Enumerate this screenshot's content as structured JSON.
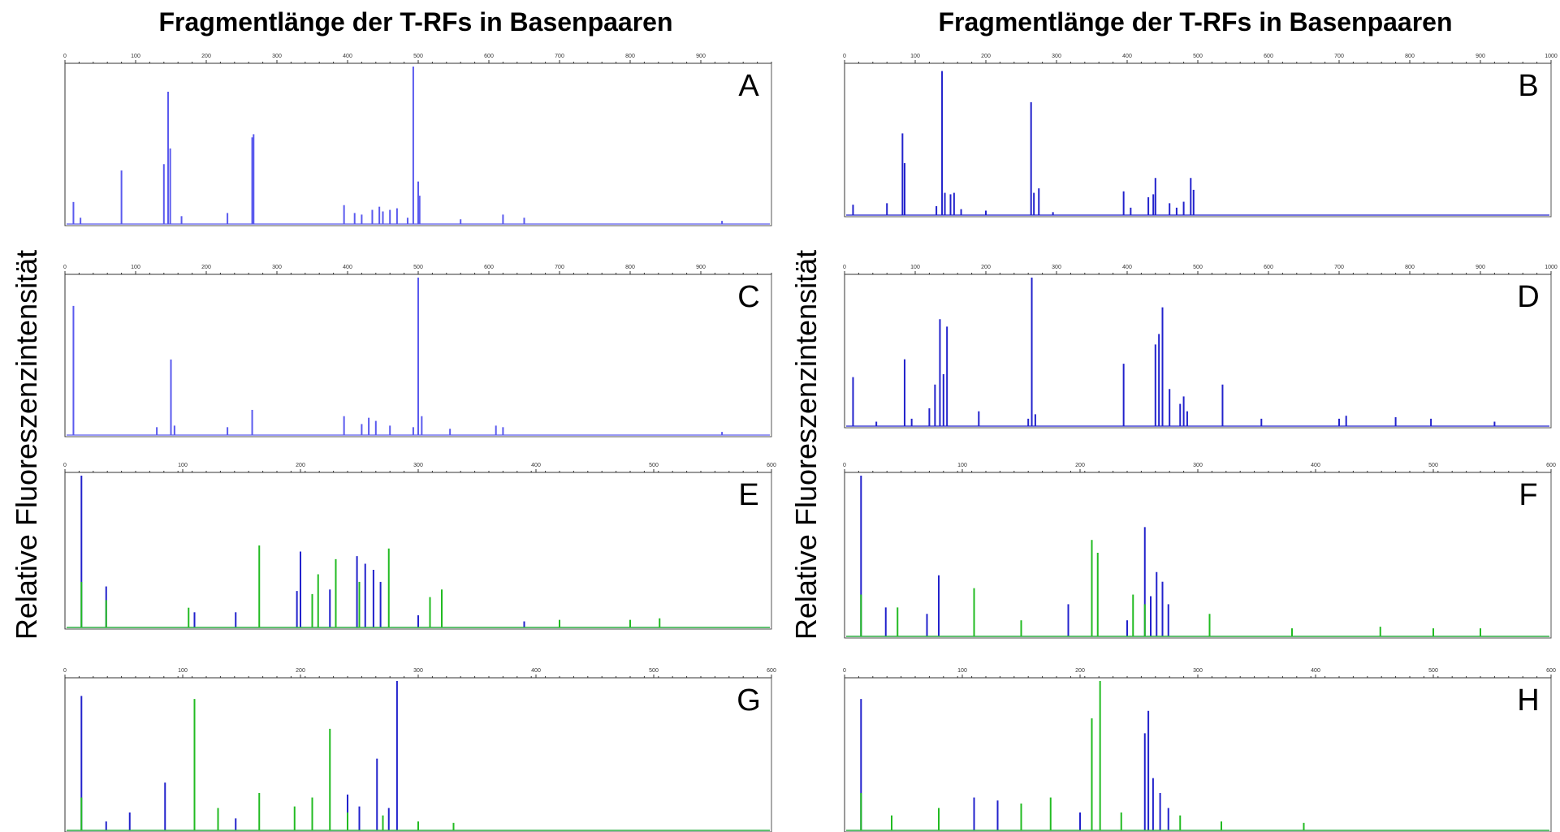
{
  "figure": {
    "title_left": "Fragmentlänge der T-RFs in Basenpaaren",
    "title_right": "Fragmentlänge der T-RFs in Basenpaaren",
    "ylabel_left": "Relative Fluoreszenzintensität",
    "ylabel_right": "Relative Fluoreszenzintensität"
  },
  "colors": {
    "blue": "#2222cc",
    "lightblue": "#7777ff",
    "green": "#22bb22",
    "frame": "#555555"
  },
  "chart_data": [
    {
      "panel": "A",
      "type": "line",
      "xlim": [
        0,
        1000
      ],
      "x_ticks": [
        "0",
        "100",
        "200",
        "300",
        "400",
        "500",
        "600",
        "700",
        "800",
        "900"
      ],
      "series": [
        {
          "color": "#5a5aee",
          "peaks": [
            [
              12,
              0.14
            ],
            [
              22,
              0.04
            ],
            [
              80,
              0.34
            ],
            [
              140,
              0.38
            ],
            [
              146,
              0.84
            ],
            [
              149,
              0.48
            ],
            [
              165,
              0.05
            ],
            [
              230,
              0.07
            ],
            [
              265,
              0.55
            ],
            [
              267,
              0.57
            ],
            [
              395,
              0.12
            ],
            [
              410,
              0.07
            ],
            [
              420,
              0.06
            ],
            [
              435,
              0.09
            ],
            [
              445,
              0.11
            ],
            [
              450,
              0.08
            ],
            [
              460,
              0.09
            ],
            [
              470,
              0.1
            ],
            [
              485,
              0.04
            ],
            [
              493,
              1.0
            ],
            [
              500,
              0.27
            ],
            [
              502,
              0.18
            ],
            [
              560,
              0.03
            ],
            [
              620,
              0.06
            ],
            [
              650,
              0.04
            ],
            [
              930,
              0.02
            ]
          ]
        }
      ]
    },
    {
      "panel": "B",
      "type": "line",
      "xlim": [
        0,
        1000
      ],
      "x_ticks": [
        "0",
        "100",
        "200",
        "300",
        "400",
        "500",
        "600",
        "700",
        "800",
        "900",
        "1000"
      ],
      "series": [
        {
          "color": "#2222cc",
          "peaks": [
            [
              12,
              0.07
            ],
            [
              60,
              0.08
            ],
            [
              82,
              0.55
            ],
            [
              85,
              0.35
            ],
            [
              130,
              0.06
            ],
            [
              138,
              0.97
            ],
            [
              142,
              0.15
            ],
            [
              150,
              0.14
            ],
            [
              155,
              0.15
            ],
            [
              165,
              0.04
            ],
            [
              200,
              0.03
            ],
            [
              264,
              0.76
            ],
            [
              268,
              0.15
            ],
            [
              275,
              0.18
            ],
            [
              295,
              0.02
            ],
            [
              395,
              0.16
            ],
            [
              405,
              0.05
            ],
            [
              430,
              0.12
            ],
            [
              437,
              0.14
            ],
            [
              440,
              0.25
            ],
            [
              460,
              0.08
            ],
            [
              470,
              0.05
            ],
            [
              480,
              0.09
            ],
            [
              490,
              0.25
            ],
            [
              494,
              0.17
            ]
          ]
        }
      ]
    },
    {
      "panel": "C",
      "type": "line",
      "xlim": [
        0,
        1000
      ],
      "x_ticks": [
        "0",
        "100",
        "200",
        "300",
        "400",
        "500",
        "600",
        "700",
        "800",
        "900"
      ],
      "series": [
        {
          "color": "#5a5aee",
          "peaks": [
            [
              12,
              0.82
            ],
            [
              130,
              0.05
            ],
            [
              150,
              0.48
            ],
            [
              155,
              0.06
            ],
            [
              230,
              0.05
            ],
            [
              265,
              0.16
            ],
            [
              395,
              0.12
            ],
            [
              420,
              0.07
            ],
            [
              430,
              0.11
            ],
            [
              440,
              0.09
            ],
            [
              460,
              0.06
            ],
            [
              493,
              0.05
            ],
            [
              500,
              1.0
            ],
            [
              505,
              0.12
            ],
            [
              545,
              0.04
            ],
            [
              610,
              0.06
            ],
            [
              620,
              0.05
            ],
            [
              930,
              0.02
            ]
          ]
        }
      ]
    },
    {
      "panel": "D",
      "type": "line",
      "xlim": [
        0,
        1000
      ],
      "x_ticks": [
        "0",
        "100",
        "200",
        "300",
        "400",
        "500",
        "600",
        "700",
        "800",
        "900",
        "1000"
      ],
      "series": [
        {
          "color": "#2222cc",
          "peaks": [
            [
              12,
              0.33
            ],
            [
              45,
              0.03
            ],
            [
              85,
              0.45
            ],
            [
              95,
              0.05
            ],
            [
              120,
              0.12
            ],
            [
              128,
              0.28
            ],
            [
              135,
              0.72
            ],
            [
              140,
              0.35
            ],
            [
              145,
              0.67
            ],
            [
              190,
              0.1
            ],
            [
              260,
              0.05
            ],
            [
              265,
              1.0
            ],
            [
              270,
              0.08
            ],
            [
              395,
              0.42
            ],
            [
              440,
              0.55
            ],
            [
              445,
              0.62
            ],
            [
              450,
              0.8
            ],
            [
              460,
              0.25
            ],
            [
              475,
              0.15
            ],
            [
              480,
              0.2
            ],
            [
              485,
              0.1
            ],
            [
              535,
              0.28
            ],
            [
              590,
              0.05
            ],
            [
              700,
              0.05
            ],
            [
              710,
              0.07
            ],
            [
              780,
              0.06
            ],
            [
              830,
              0.05
            ],
            [
              920,
              0.03
            ]
          ]
        }
      ]
    },
    {
      "panel": "E",
      "type": "line",
      "xlim": [
        0,
        600
      ],
      "x_ticks": [
        "0",
        "100",
        "200",
        "300",
        "400",
        "500",
        "600"
      ],
      "series": [
        {
          "color": "#2222cc",
          "peaks": [
            [
              14,
              1.0
            ],
            [
              35,
              0.27
            ],
            [
              110,
              0.1
            ],
            [
              145,
              0.1
            ],
            [
              197,
              0.24
            ],
            [
              200,
              0.5
            ],
            [
              225,
              0.25
            ],
            [
              248,
              0.47
            ],
            [
              255,
              0.42
            ],
            [
              262,
              0.38
            ],
            [
              268,
              0.3
            ],
            [
              300,
              0.08
            ],
            [
              390,
              0.04
            ]
          ]
        },
        {
          "color": "#22bb22",
          "peaks": [
            [
              14,
              0.3
            ],
            [
              35,
              0.18
            ],
            [
              105,
              0.13
            ],
            [
              165,
              0.54
            ],
            [
              210,
              0.22
            ],
            [
              215,
              0.35
            ],
            [
              230,
              0.45
            ],
            [
              250,
              0.3
            ],
            [
              275,
              0.52
            ],
            [
              310,
              0.2
            ],
            [
              320,
              0.25
            ],
            [
              420,
              0.05
            ],
            [
              480,
              0.05
            ],
            [
              505,
              0.06
            ]
          ]
        }
      ]
    },
    {
      "panel": "F",
      "type": "line",
      "xlim": [
        0,
        600
      ],
      "x_ticks": [
        "0",
        "100",
        "200",
        "300",
        "400",
        "500",
        "600"
      ],
      "series": [
        {
          "color": "#2222cc",
          "peaks": [
            [
              14,
              1.0
            ],
            [
              35,
              0.18
            ],
            [
              70,
              0.14
            ],
            [
              80,
              0.38
            ],
            [
              190,
              0.2
            ],
            [
              210,
              0.18
            ],
            [
              240,
              0.1
            ],
            [
              255,
              0.68
            ],
            [
              260,
              0.25
            ],
            [
              265,
              0.4
            ],
            [
              270,
              0.34
            ],
            [
              275,
              0.2
            ]
          ]
        },
        {
          "color": "#22bb22",
          "peaks": [
            [
              14,
              0.26
            ],
            [
              45,
              0.18
            ],
            [
              110,
              0.3
            ],
            [
              150,
              0.1
            ],
            [
              210,
              0.6
            ],
            [
              215,
              0.52
            ],
            [
              245,
              0.26
            ],
            [
              255,
              0.2
            ],
            [
              310,
              0.14
            ],
            [
              380,
              0.05
            ],
            [
              455,
              0.06
            ],
            [
              500,
              0.05
            ],
            [
              540,
              0.05
            ]
          ]
        }
      ]
    },
    {
      "panel": "G",
      "type": "line",
      "xlim": [
        0,
        600
      ],
      "x_ticks": [
        "0",
        "100",
        "200",
        "300",
        "400",
        "500",
        "600"
      ],
      "series": [
        {
          "color": "#2222cc",
          "peaks": [
            [
              14,
              0.9
            ],
            [
              35,
              0.06
            ],
            [
              55,
              0.12
            ],
            [
              85,
              0.32
            ],
            [
              145,
              0.08
            ],
            [
              240,
              0.24
            ],
            [
              250,
              0.16
            ],
            [
              265,
              0.48
            ],
            [
              275,
              0.15
            ],
            [
              282,
              1.0
            ]
          ]
        },
        {
          "color": "#22bb22",
          "peaks": [
            [
              14,
              0.22
            ],
            [
              110,
              0.88
            ],
            [
              130,
              0.15
            ],
            [
              165,
              0.25
            ],
            [
              195,
              0.16
            ],
            [
              210,
              0.22
            ],
            [
              225,
              0.68
            ],
            [
              240,
              0.12
            ],
            [
              270,
              0.1
            ],
            [
              300,
              0.06
            ],
            [
              330,
              0.05
            ]
          ]
        }
      ]
    },
    {
      "panel": "H",
      "type": "line",
      "xlim": [
        0,
        600
      ],
      "x_ticks": [
        "0",
        "100",
        "200",
        "300",
        "400",
        "500",
        "600"
      ],
      "series": [
        {
          "color": "#2222cc",
          "peaks": [
            [
              14,
              0.88
            ],
            [
              110,
              0.22
            ],
            [
              130,
              0.2
            ],
            [
              200,
              0.12
            ],
            [
              255,
              0.65
            ],
            [
              258,
              0.8
            ],
            [
              262,
              0.35
            ],
            [
              268,
              0.25
            ],
            [
              275,
              0.15
            ]
          ]
        },
        {
          "color": "#22bb22",
          "peaks": [
            [
              14,
              0.25
            ],
            [
              40,
              0.1
            ],
            [
              80,
              0.15
            ],
            [
              150,
              0.18
            ],
            [
              175,
              0.22
            ],
            [
              210,
              0.75
            ],
            [
              217,
              1.0
            ],
            [
              235,
              0.12
            ],
            [
              285,
              0.1
            ],
            [
              320,
              0.06
            ],
            [
              390,
              0.05
            ]
          ]
        }
      ]
    }
  ]
}
